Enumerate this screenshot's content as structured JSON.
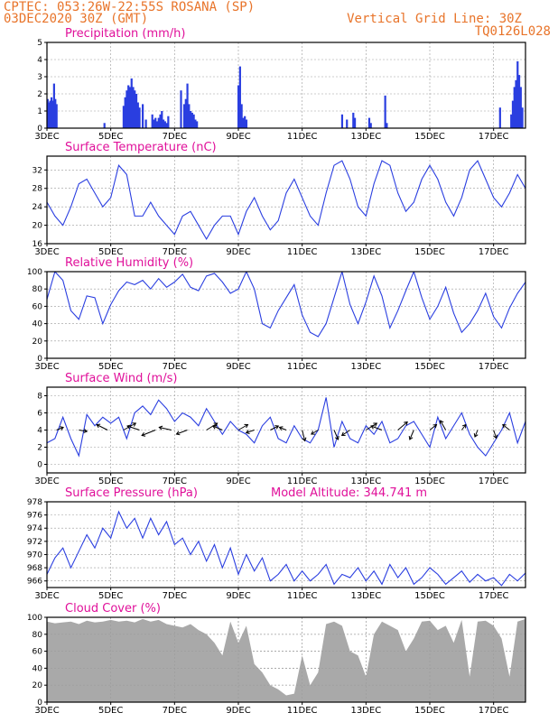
{
  "header": {
    "station": "CPTEC:   053:26W-22:55S   ROSANA (SP)",
    "init_time": "03DEC2020 30Z (GMT)",
    "grid_note": "Vertical Grid Line: 30Z",
    "model_code": "TQ0126L028"
  },
  "x_axis": {
    "labels": [
      "3DEC",
      "5DEC",
      "7DEC",
      "9DEC",
      "11DEC",
      "13DEC",
      "15DEC",
      "17DEC"
    ],
    "label_days": [
      0,
      2,
      4,
      6,
      8,
      10,
      12,
      14
    ],
    "range_days": [
      0,
      15.0
    ]
  },
  "chart_data": [
    {
      "type": "bar",
      "title": "Precipitation (mm/h)",
      "ylim": [
        0,
        5
      ],
      "yticks": [
        0,
        1,
        2,
        3,
        4,
        5
      ],
      "x_days": [
        0.02,
        0.06,
        0.1,
        0.14,
        0.18,
        0.22,
        0.26,
        0.3,
        1.8,
        2.4,
        2.45,
        2.5,
        2.55,
        2.6,
        2.65,
        2.7,
        2.75,
        2.8,
        2.85,
        2.9,
        3.0,
        3.1,
        3.3,
        3.35,
        3.4,
        3.45,
        3.5,
        3.55,
        3.6,
        3.65,
        3.7,
        3.75,
        3.8,
        4.2,
        4.3,
        4.35,
        4.4,
        4.45,
        4.5,
        4.55,
        4.6,
        4.65,
        4.7,
        6.0,
        6.05,
        6.1,
        6.15,
        6.2,
        6.25,
        9.25,
        9.4,
        9.6,
        9.65,
        10.1,
        10.15,
        10.6,
        10.65,
        14.2,
        14.55,
        14.6,
        14.65,
        14.7,
        14.75,
        14.8,
        14.85,
        14.9
      ],
      "values": [
        1.7,
        1.5,
        1.6,
        1.8,
        1.6,
        2.6,
        1.7,
        1.4,
        0.3,
        1.3,
        1.8,
        2.2,
        2.5,
        2.4,
        2.9,
        2.4,
        2.2,
        2.0,
        1.5,
        1.2,
        1.4,
        0.5,
        0.8,
        0.5,
        0.6,
        0.4,
        0.6,
        0.8,
        1.0,
        0.5,
        0.4,
        0.3,
        0.7,
        2.2,
        1.4,
        1.7,
        2.6,
        1.4,
        1.0,
        0.9,
        0.8,
        0.5,
        0.4,
        2.5,
        3.6,
        1.4,
        0.6,
        0.7,
        0.5,
        0.8,
        0.5,
        0.9,
        0.6,
        0.6,
        0.3,
        1.9,
        0.3,
        1.2,
        0.8,
        1.6,
        2.4,
        2.8,
        3.9,
        3.1,
        2.4,
        1.2
      ]
    },
    {
      "type": "line",
      "title": "Surface Temperature (nC)",
      "ylim": [
        16,
        35
      ],
      "yticks": [
        16,
        20,
        24,
        28,
        32
      ],
      "x_days": [
        0,
        0.25,
        0.5,
        0.75,
        1.0,
        1.25,
        1.5,
        1.75,
        2.0,
        2.25,
        2.5,
        2.75,
        3.0,
        3.25,
        3.5,
        3.75,
        4.0,
        4.25,
        4.5,
        4.75,
        5.0,
        5.25,
        5.5,
        5.75,
        6.0,
        6.25,
        6.5,
        6.75,
        7.0,
        7.25,
        7.5,
        7.75,
        8.0,
        8.25,
        8.5,
        8.75,
        9.0,
        9.25,
        9.5,
        9.75,
        10.0,
        10.25,
        10.5,
        10.75,
        11.0,
        11.25,
        11.5,
        11.75,
        12.0,
        12.25,
        12.5,
        12.75,
        13.0,
        13.25,
        13.5,
        13.75,
        14.0,
        14.25,
        14.5,
        14.75,
        15.0
      ],
      "values": [
        25,
        22,
        20,
        24,
        29,
        30,
        27,
        24,
        26,
        33,
        31,
        22,
        22,
        25,
        22,
        20,
        18,
        22,
        23,
        20,
        17,
        20,
        22,
        22,
        18,
        23,
        26,
        22,
        19,
        21,
        27,
        30,
        26,
        22,
        20,
        27,
        33,
        34,
        30,
        24,
        22,
        29,
        34,
        33,
        27,
        23,
        25,
        30,
        33,
        30,
        25,
        22,
        26,
        32,
        34,
        30,
        26,
        24,
        27,
        31,
        28
      ]
    },
    {
      "type": "line",
      "title": "Relative Humidity (%)",
      "ylim": [
        0,
        100
      ],
      "yticks": [
        0,
        20,
        40,
        60,
        80,
        100
      ],
      "x_days": [
        0,
        0.25,
        0.5,
        0.75,
        1.0,
        1.25,
        1.5,
        1.75,
        2.0,
        2.25,
        2.5,
        2.75,
        3.0,
        3.25,
        3.5,
        3.75,
        4.0,
        4.25,
        4.5,
        4.75,
        5.0,
        5.25,
        5.5,
        5.75,
        6.0,
        6.25,
        6.5,
        6.75,
        7.0,
        7.25,
        7.5,
        7.75,
        8.0,
        8.25,
        8.5,
        8.75,
        9.0,
        9.25,
        9.5,
        9.75,
        10.0,
        10.25,
        10.5,
        10.75,
        11.0,
        11.25,
        11.5,
        11.75,
        12.0,
        12.25,
        12.5,
        12.75,
        13.0,
        13.25,
        13.5,
        13.75,
        14.0,
        14.25,
        14.5,
        14.75,
        15.0
      ],
      "values": [
        68,
        100,
        90,
        55,
        45,
        72,
        70,
        40,
        62,
        78,
        88,
        85,
        90,
        80,
        92,
        82,
        88,
        97,
        82,
        78,
        95,
        98,
        88,
        75,
        80,
        100,
        80,
        40,
        35,
        55,
        70,
        85,
        50,
        30,
        25,
        40,
        70,
        100,
        62,
        40,
        65,
        95,
        72,
        35,
        55,
        78,
        100,
        70,
        45,
        60,
        82,
        52,
        30,
        40,
        55,
        75,
        48,
        35,
        58,
        75,
        88
      ]
    },
    {
      "type": "line",
      "title": "Surface Wind (m/s)",
      "ylim": [
        -1,
        9
      ],
      "yticks": [
        0,
        2,
        4,
        6,
        8
      ],
      "x_days": [
        0,
        0.25,
        0.5,
        0.75,
        1.0,
        1.25,
        1.5,
        1.75,
        2.0,
        2.25,
        2.5,
        2.75,
        3.0,
        3.25,
        3.5,
        3.75,
        4.0,
        4.25,
        4.5,
        4.75,
        5.0,
        5.25,
        5.5,
        5.75,
        6.0,
        6.25,
        6.5,
        6.75,
        7.0,
        7.25,
        7.5,
        7.75,
        8.0,
        8.25,
        8.5,
        8.75,
        9.0,
        9.25,
        9.5,
        9.75,
        10.0,
        10.25,
        10.5,
        10.75,
        11.0,
        11.25,
        11.5,
        11.75,
        12.0,
        12.25,
        12.5,
        12.75,
        13.0,
        13.25,
        13.5,
        13.75,
        14.0,
        14.25,
        14.5,
        14.75,
        15.0
      ],
      "values": [
        2.5,
        3.0,
        5.5,
        3.0,
        1.0,
        5.8,
        4.5,
        5.5,
        4.8,
        5.5,
        3.0,
        6.0,
        6.8,
        5.8,
        7.5,
        6.5,
        5.0,
        6.0,
        5.5,
        4.5,
        6.5,
        5.0,
        3.5,
        5.0,
        4.0,
        3.5,
        2.5,
        4.5,
        5.5,
        3.0,
        2.5,
        4.5,
        3.0,
        2.5,
        4.0,
        7.8,
        2.0,
        5.0,
        3.0,
        2.5,
        4.5,
        3.5,
        5.0,
        2.5,
        3.0,
        4.5,
        5.0,
        3.5,
        2.0,
        5.5,
        3.0,
        4.5,
        6.0,
        3.5,
        2.0,
        1.0,
        2.5,
        4.0,
        6.0,
        2.5,
        5.0
      ],
      "wind_vectors": [
        {
          "x_days": 0.3,
          "u": 0.5,
          "v": 0.2
        },
        {
          "x_days": 1.0,
          "u": 0.6,
          "v": -0.1
        },
        {
          "x_days": 1.9,
          "u": -0.8,
          "v": 0.4
        },
        {
          "x_days": 2.4,
          "u": 0.9,
          "v": 0.5
        },
        {
          "x_days": 2.9,
          "u": -0.9,
          "v": 0.3
        },
        {
          "x_days": 3.4,
          "u": -1.0,
          "v": -0.4
        },
        {
          "x_days": 3.9,
          "u": -0.9,
          "v": 0.2
        },
        {
          "x_days": 4.4,
          "u": -0.8,
          "v": -0.3
        },
        {
          "x_days": 5.0,
          "u": 0.8,
          "v": 0.5
        },
        {
          "x_days": 5.5,
          "u": -0.7,
          "v": 0.3
        },
        {
          "x_days": 6.0,
          "u": 0.7,
          "v": 0.4
        },
        {
          "x_days": 6.5,
          "u": -0.6,
          "v": -0.2
        },
        {
          "x_days": 7.0,
          "u": 0.6,
          "v": 0.3
        },
        {
          "x_days": 7.5,
          "u": -0.5,
          "v": 0.2
        },
        {
          "x_days": 8.0,
          "u": 0.2,
          "v": -0.8
        },
        {
          "x_days": 8.5,
          "u": -0.5,
          "v": -0.3
        },
        {
          "x_days": 9.0,
          "u": 0.3,
          "v": -0.7
        },
        {
          "x_days": 9.5,
          "u": -0.6,
          "v": -0.4
        },
        {
          "x_days": 10.0,
          "u": 0.8,
          "v": 0.5
        },
        {
          "x_days": 10.5,
          "u": -0.8,
          "v": 0.3
        },
        {
          "x_days": 11.0,
          "u": 0.7,
          "v": 0.6
        },
        {
          "x_days": 11.5,
          "u": -0.3,
          "v": -0.7
        },
        {
          "x_days": 12.0,
          "u": 0.5,
          "v": 0.4
        },
        {
          "x_days": 12.5,
          "u": -0.4,
          "v": 0.7
        },
        {
          "x_days": 13.0,
          "u": 0.3,
          "v": 0.4
        },
        {
          "x_days": 13.5,
          "u": -0.2,
          "v": -0.5
        },
        {
          "x_days": 14.0,
          "u": 0.2,
          "v": -0.6
        },
        {
          "x_days": 14.5,
          "u": -0.5,
          "v": 0.4
        }
      ]
    },
    {
      "type": "line",
      "title": "Surface Pressure (hPa)",
      "subtitle": "Model Altitude: 344.741  m",
      "ylim": [
        965,
        978
      ],
      "yticks": [
        966,
        968,
        970,
        972,
        974,
        976,
        978
      ],
      "x_days": [
        0,
        0.25,
        0.5,
        0.75,
        1.0,
        1.25,
        1.5,
        1.75,
        2.0,
        2.25,
        2.5,
        2.75,
        3.0,
        3.25,
        3.5,
        3.75,
        4.0,
        4.25,
        4.5,
        4.75,
        5.0,
        5.25,
        5.5,
        5.75,
        6.0,
        6.25,
        6.5,
        6.75,
        7.0,
        7.25,
        7.5,
        7.75,
        8.0,
        8.25,
        8.5,
        8.75,
        9.0,
        9.25,
        9.5,
        9.75,
        10.0,
        10.25,
        10.5,
        10.75,
        11.0,
        11.25,
        11.5,
        11.75,
        12.0,
        12.25,
        12.5,
        12.75,
        13.0,
        13.25,
        13.5,
        13.75,
        14.0,
        14.25,
        14.5,
        14.75,
        15.0
      ],
      "values": [
        967,
        969.5,
        971,
        968,
        970.5,
        973,
        971,
        974,
        972.5,
        976.5,
        974,
        975.5,
        972.5,
        975.5,
        973,
        975,
        971.5,
        972.5,
        970,
        972,
        969,
        971.5,
        968,
        971,
        967,
        970,
        967.5,
        969.5,
        966,
        967,
        968.5,
        966,
        967.5,
        966,
        967,
        968.5,
        965.5,
        967,
        966.5,
        968,
        966,
        967.5,
        965.5,
        968.5,
        966.5,
        968,
        965.5,
        966.5,
        968,
        967,
        965.5,
        966.5,
        967.5,
        965.8,
        967,
        966,
        966.5,
        965.3,
        967,
        966,
        967.2
      ]
    },
    {
      "type": "area",
      "title": "Cloud Cover (%)",
      "ylim": [
        0,
        100
      ],
      "yticks": [
        0,
        20,
        40,
        60,
        80,
        100
      ],
      "x_days": [
        0,
        0.25,
        0.5,
        0.75,
        1.0,
        1.25,
        1.5,
        1.75,
        2.0,
        2.25,
        2.5,
        2.75,
        3.0,
        3.25,
        3.5,
        3.75,
        4.0,
        4.25,
        4.5,
        4.75,
        5.0,
        5.25,
        5.5,
        5.75,
        6.0,
        6.25,
        6.5,
        6.75,
        7.0,
        7.25,
        7.5,
        7.75,
        8.0,
        8.25,
        8.5,
        8.75,
        9.0,
        9.25,
        9.5,
        9.75,
        10.0,
        10.25,
        10.5,
        10.75,
        11.0,
        11.25,
        11.5,
        11.75,
        12.0,
        12.25,
        12.5,
        12.75,
        13.0,
        13.25,
        13.5,
        13.75,
        14.0,
        14.25,
        14.5,
        14.75,
        15.0
      ],
      "values": [
        95,
        93,
        94,
        95,
        92,
        96,
        94,
        95,
        97,
        95,
        96,
        94,
        98,
        95,
        97,
        92,
        90,
        88,
        92,
        85,
        80,
        70,
        55,
        95,
        70,
        90,
        45,
        35,
        20,
        15,
        8,
        10,
        55,
        20,
        35,
        92,
        95,
        90,
        60,
        55,
        30,
        80,
        95,
        90,
        85,
        60,
        75,
        95,
        96,
        85,
        90,
        70,
        97,
        30,
        95,
        96,
        90,
        75,
        30,
        95,
        98
      ]
    }
  ]
}
